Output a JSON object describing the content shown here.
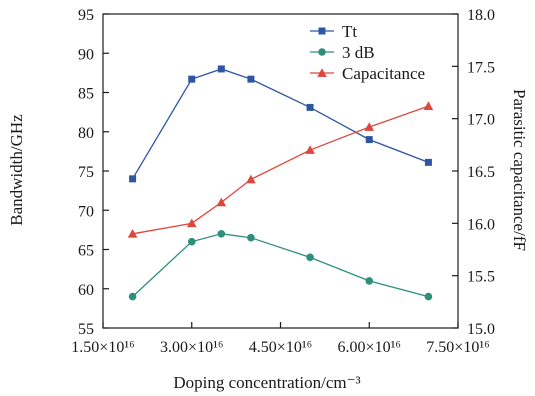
{
  "chart_data": {
    "type": "line",
    "x": [
      20000000000000000,
      30000000000000000,
      35000000000000000,
      40000000000000000,
      50000000000000000,
      60000000000000000,
      70000000000000000
    ],
    "x_tick_values": [
      15000000000000000,
      30000000000000000,
      45000000000000000,
      60000000000000000,
      75000000000000000
    ],
    "x_tick_labels": [
      "1.50×10¹⁶",
      "3.00×10¹⁶",
      "4.50×10¹⁶",
      "6.00×10¹⁶",
      "7.50×10¹⁶"
    ],
    "xlim": [
      15000000000000000,
      75000000000000000
    ],
    "y_left_ticks": [
      "55",
      "60",
      "65",
      "70",
      "75",
      "80",
      "85",
      "90",
      "95"
    ],
    "y_left_tick_values": [
      55,
      60,
      65,
      70,
      75,
      80,
      85,
      90,
      95
    ],
    "ylim_left": [
      55,
      95
    ],
    "y_right_ticks": [
      "15.0",
      "15.5",
      "16.0",
      "16.5",
      "17.0",
      "17.5",
      "18.0"
    ],
    "y_right_tick_values": [
      15.0,
      15.5,
      16.0,
      16.5,
      17.0,
      17.5,
      18.0
    ],
    "ylim_right": [
      15.0,
      18.0
    ],
    "xlabel": "Doping concentration/cm⁻³",
    "ylabel_left": "Bandwidth/GHz",
    "ylabel_right": "Parasitic capacitance/fF",
    "legend_position": "top-right",
    "grid": false,
    "series": [
      {
        "name": "Tt",
        "axis": "left",
        "marker": "square",
        "color": "#2f56a3",
        "values": [
          74.0,
          86.7,
          88.0,
          86.7,
          83.1,
          79.0,
          76.1
        ]
      },
      {
        "name": "3 dB",
        "axis": "left",
        "marker": "circle",
        "color": "#2e8f7c",
        "values": [
          59.0,
          66.0,
          67.0,
          66.5,
          64.0,
          61.0,
          59.0
        ]
      },
      {
        "name": "Capacitance",
        "axis": "right",
        "marker": "triangle",
        "color": "#e0463c",
        "values": [
          15.9,
          16.0,
          16.2,
          16.42,
          16.7,
          16.92,
          17.12
        ]
      }
    ]
  }
}
